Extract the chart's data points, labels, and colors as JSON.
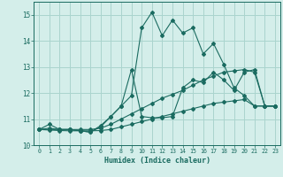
{
  "xlabel": "Humidex (Indice chaleur)",
  "background_color": "#d4eeea",
  "grid_color": "#aad4ce",
  "line_color": "#1a6b60",
  "xlim": [
    -0.5,
    23.5
  ],
  "ylim": [
    10.0,
    15.5
  ],
  "yticks": [
    10,
    11,
    12,
    13,
    14,
    15
  ],
  "xticks": [
    0,
    1,
    2,
    3,
    4,
    5,
    6,
    7,
    8,
    9,
    10,
    11,
    12,
    13,
    14,
    15,
    16,
    17,
    18,
    19,
    20,
    21,
    22,
    23
  ],
  "series": [
    [
      10.6,
      10.8,
      10.6,
      10.6,
      10.55,
      10.5,
      10.7,
      11.1,
      11.5,
      11.9,
      14.5,
      15.1,
      14.2,
      14.8,
      14.3,
      14.5,
      13.5,
      13.9,
      13.1,
      12.2,
      11.9,
      11.5,
      11.5,
      11.5
    ],
    [
      10.6,
      10.65,
      10.6,
      10.6,
      10.55,
      10.5,
      10.75,
      11.1,
      11.5,
      12.9,
      11.1,
      11.05,
      11.05,
      11.1,
      12.2,
      12.5,
      12.4,
      12.8,
      12.5,
      12.1,
      12.8,
      12.9,
      11.5,
      11.5
    ],
    [
      10.6,
      10.6,
      10.6,
      10.6,
      10.6,
      10.6,
      10.65,
      10.8,
      11.0,
      11.2,
      11.4,
      11.6,
      11.8,
      11.95,
      12.1,
      12.3,
      12.5,
      12.65,
      12.8,
      12.85,
      12.9,
      12.8,
      11.5,
      11.5
    ],
    [
      10.6,
      10.58,
      10.56,
      10.55,
      10.55,
      10.55,
      10.56,
      10.6,
      10.7,
      10.8,
      10.9,
      11.0,
      11.1,
      11.2,
      11.3,
      11.4,
      11.5,
      11.6,
      11.65,
      11.7,
      11.75,
      11.5,
      11.5,
      11.5
    ]
  ]
}
